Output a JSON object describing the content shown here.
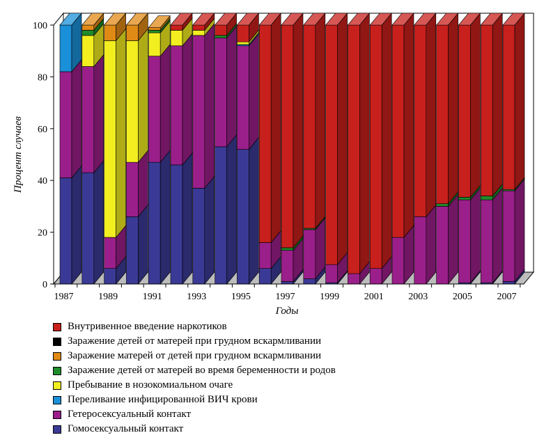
{
  "chart_data": {
    "type": "bar",
    "stacked": true,
    "three_d": true,
    "xlabel": "Годы",
    "ylabel": "Процент случаев",
    "ylim": [
      0,
      100
    ],
    "yticks": [
      0,
      20,
      40,
      60,
      80,
      100
    ],
    "xtick_labels": [
      "1987",
      "1989",
      "1991",
      "1993",
      "1995",
      "1997",
      "1999",
      "2001",
      "2003",
      "2005",
      "2007"
    ],
    "categories": [
      "1987",
      "1988",
      "1989",
      "1990",
      "1991",
      "1992",
      "1993",
      "1994",
      "1995",
      "1996",
      "1997",
      "1998",
      "1999",
      "2000",
      "2001",
      "2002",
      "2003",
      "2004",
      "2005",
      "2006",
      "2007"
    ],
    "legend_position": "bottom",
    "series": [
      {
        "name": "Гомосексуальный контакт",
        "color": "#3a3a96",
        "values": [
          41,
          43,
          6,
          26,
          47,
          46,
          37,
          53,
          52,
          6,
          1,
          2,
          0.5,
          0,
          0,
          0,
          0,
          0,
          0.5,
          0.5,
          1
        ]
      },
      {
        "name": "Гетеросексуальный контакт",
        "color": "#9b1f8a",
        "values": [
          41,
          41,
          12,
          21,
          41,
          46,
          59,
          42,
          40,
          10,
          12,
          19,
          7,
          4,
          6,
          18,
          26,
          30,
          32,
          32,
          35
        ]
      },
      {
        "name": "Переливание  инфицированной ВИЧ крови",
        "color": "#1a90d8",
        "values": [
          18,
          0,
          0,
          0,
          0,
          0,
          0,
          0,
          0.5,
          0,
          0,
          0,
          0,
          0,
          0,
          0,
          0,
          0,
          0,
          0,
          0
        ]
      },
      {
        "name": "Пребывание в нозокомиальном очаге",
        "color": "#f2ee20",
        "values": [
          0,
          12,
          76,
          47,
          9,
          6,
          2,
          0,
          1,
          0,
          0,
          0,
          0,
          0,
          0,
          0,
          0,
          0,
          0,
          0,
          0
        ]
      },
      {
        "name": "Заражение детей от матерей во время беременности и  родов",
        "color": "#1f8c2a",
        "values": [
          0,
          2,
          0,
          0,
          1,
          0,
          0,
          1,
          0,
          0,
          1,
          0.5,
          0,
          0,
          0,
          0,
          0,
          1,
          1,
          1.5,
          0.5
        ]
      },
      {
        "name": "Заражение матерей от детей при грудном вскармливании",
        "color": "#e08a16",
        "values": [
          0,
          2,
          6,
          6,
          1,
          0,
          0,
          0,
          0,
          0,
          0,
          0,
          0,
          0,
          0,
          0,
          0,
          0,
          0,
          0,
          0
        ]
      },
      {
        "name": "Заражение детей от матерей при грудном вскармливании",
        "color": "#000000",
        "values": [
          0,
          0,
          0,
          0,
          0,
          0,
          0,
          0,
          0,
          0,
          0,
          0,
          0,
          0,
          0,
          0,
          0,
          0,
          0,
          0,
          0
        ]
      },
      {
        "name": "Внутривенное введение наркотиков",
        "color": "#c8201c",
        "values": [
          0,
          0,
          0,
          0,
          0,
          2,
          2,
          4,
          6.5,
          84,
          86,
          78.5,
          92.5,
          96,
          94,
          82,
          74,
          69,
          66.5,
          66,
          63.5
        ]
      }
    ]
  },
  "legend_order": [
    7,
    6,
    5,
    4,
    3,
    2,
    1,
    0
  ]
}
